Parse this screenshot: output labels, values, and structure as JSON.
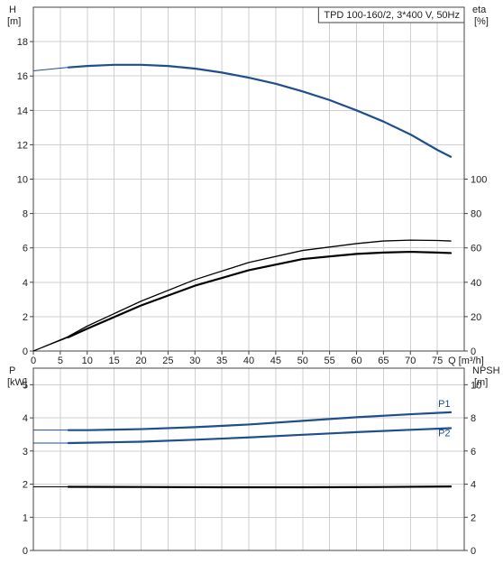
{
  "chart_data": [
    {
      "type": "line",
      "title": "TPD 100-160/2, 3*400 V, 50Hz",
      "xlabel": "Q [m³/h]",
      "xlim": [
        0,
        80
      ],
      "x_ticks": [
        "0",
        "5",
        "10",
        "15",
        "20",
        "25",
        "30",
        "35",
        "40",
        "45",
        "50",
        "55",
        "60",
        "65",
        "70",
        "75"
      ],
      "ylabel_left": [
        "H",
        "[m]"
      ],
      "ylim_left": [
        0,
        20
      ],
      "y_ticks_left": [
        "0",
        "2",
        "4",
        "6",
        "8",
        "10",
        "12",
        "14",
        "16",
        "18"
      ],
      "ylabel_right": [
        "eta",
        "[%]"
      ],
      "ylim_right": [
        0,
        200
      ],
      "y_ticks_right": [
        "0",
        "20",
        "40",
        "60",
        "80",
        "100"
      ],
      "grid": true,
      "series": [
        {
          "axis": "left",
          "color": "#1f4e8c",
          "x": [
            0,
            6.5,
            10,
            15,
            20,
            25,
            30,
            35,
            40,
            45,
            50,
            55,
            60,
            65,
            70,
            75,
            77.5
          ],
          "values": [
            16.3,
            16.5,
            16.58,
            16.65,
            16.65,
            16.58,
            16.43,
            16.2,
            15.9,
            15.55,
            15.1,
            14.6,
            14.0,
            13.35,
            12.6,
            11.7,
            11.3
          ]
        },
        {
          "axis": "right",
          "color": "#000000",
          "x": [
            0,
            6.5,
            10,
            20,
            30,
            40,
            50,
            60,
            65,
            70,
            75,
            77.5
          ],
          "values": [
            0,
            8.5,
            14.5,
            29,
            41.5,
            51.5,
            58.5,
            62.5,
            64,
            64.5,
            64.3,
            64
          ]
        },
        {
          "axis": "right",
          "color": "#000000",
          "x": [
            0,
            6.5,
            10,
            20,
            30,
            40,
            50,
            60,
            65,
            70,
            75,
            77.5
          ],
          "values": [
            0,
            8,
            13,
            26.5,
            38,
            47,
            53.5,
            56.5,
            57.3,
            57.7,
            57.3,
            57
          ]
        }
      ]
    },
    {
      "type": "line",
      "xlim": [
        0,
        80
      ],
      "ylabel_left": [
        "P",
        "[kW]"
      ],
      "ylim_left": [
        0,
        5.5
      ],
      "y_ticks_left": [
        "0",
        "1",
        "2",
        "3",
        "4",
        "5"
      ],
      "ylabel_right": [
        "NPSH",
        "[m]"
      ],
      "ylim_right": [
        0,
        11
      ],
      "y_ticks_right": [
        "0",
        "2",
        "4",
        "6",
        "8",
        "10"
      ],
      "grid": true,
      "series": [
        {
          "name": "P1",
          "axis": "left",
          "color": "#1f4e8c",
          "x": [
            0,
            6.5,
            10,
            20,
            30,
            40,
            50,
            60,
            70,
            77.5
          ],
          "values": [
            3.63,
            3.63,
            3.63,
            3.66,
            3.72,
            3.8,
            3.91,
            4.02,
            4.11,
            4.17
          ]
        },
        {
          "name": "P2",
          "axis": "left",
          "color": "#1f4e8c",
          "x": [
            0,
            6.5,
            10,
            20,
            30,
            40,
            50,
            60,
            70,
            77.5
          ],
          "values": [
            3.24,
            3.24,
            3.25,
            3.28,
            3.34,
            3.41,
            3.49,
            3.57,
            3.64,
            3.69
          ]
        },
        {
          "axis": "right",
          "color": "#000000",
          "x": [
            0,
            6.5,
            20,
            35,
            50,
            65,
            77.5
          ],
          "values": [
            3.84,
            3.84,
            3.83,
            3.81,
            3.81,
            3.83,
            3.86
          ]
        }
      ]
    }
  ]
}
